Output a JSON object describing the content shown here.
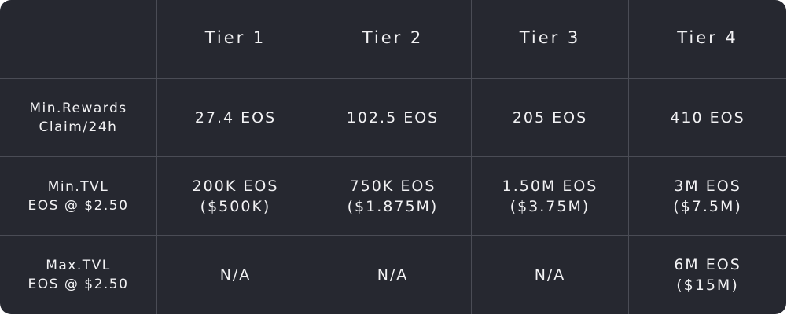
{
  "table": {
    "corner": "",
    "headers": [
      "Tier 1",
      "Tier 2",
      "Tier 3",
      "Tier 4"
    ],
    "rows": [
      {
        "label": "Min.Rewards\nClaim/24h",
        "cells": [
          "27.4 EOS",
          "102.5 EOS",
          "205 EOS",
          "410 EOS"
        ]
      },
      {
        "label": "Min.TVL\nEOS @ $2.50",
        "cells": [
          "200K EOS\n($500K)",
          "750K EOS\n($1.875M)",
          "1.50M EOS\n($3.75M)",
          "3M EOS\n($7.5M)"
        ]
      },
      {
        "label": "Max.TVL\nEOS @ $2.50",
        "cells": [
          "N/A",
          "N/A",
          "N/A",
          "6M EOS\n($15M)"
        ]
      }
    ]
  },
  "colors": {
    "background": "#262830",
    "grid_line": "#4a4c55",
    "text": "#f2f2f4"
  }
}
